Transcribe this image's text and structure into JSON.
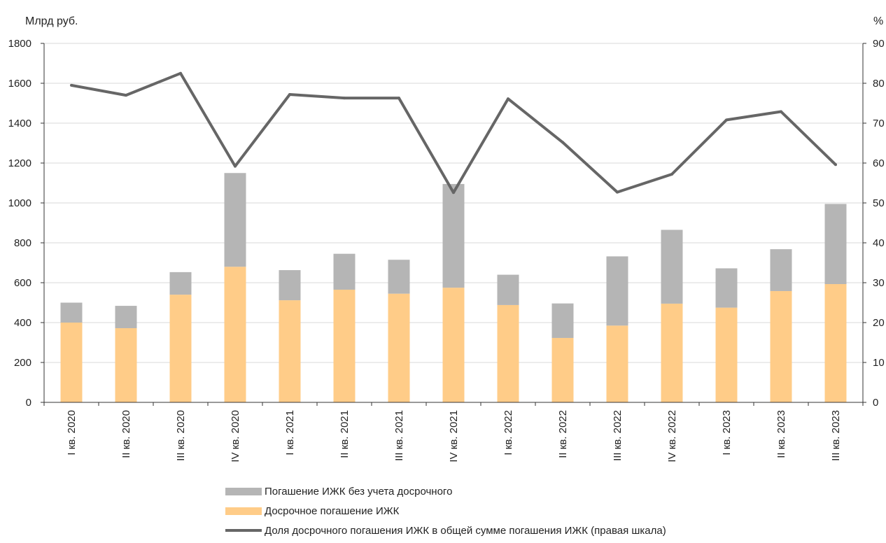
{
  "chart_data": {
    "type": "bar",
    "stacked": true,
    "left_unit": "Млрд руб.",
    "right_unit": "%",
    "categories": [
      "I кв. 2020",
      "II кв. 2020",
      "III кв. 2020",
      "IV кв. 2020",
      "I кв. 2021",
      "II кв. 2021",
      "III кв. 2021",
      "IV кв. 2021",
      "I кв. 2022",
      "II кв. 2022",
      "III кв. 2022",
      "IV кв. 2022",
      "I кв. 2023",
      "II кв. 2023",
      "III кв. 2023"
    ],
    "ylim": [
      0,
      1800
    ],
    "y_ticks": [
      "0",
      "200",
      "400",
      "600",
      "800",
      "1000",
      "1200",
      "1400",
      "1600",
      "1800"
    ],
    "y2lim": [
      0,
      90
    ],
    "y2_ticks": [
      "0",
      "10",
      "20",
      "30",
      "40",
      "50",
      "60",
      "70",
      "80",
      "90"
    ],
    "series": [
      {
        "name": "Досрочное погашение ИЖК",
        "kind": "bar",
        "color": "#FFCC88",
        "values": [
          400,
          372,
          540,
          680,
          512,
          565,
          545,
          575,
          488,
          323,
          385,
          495,
          475,
          558,
          593
        ]
      },
      {
        "name": "Погашение ИЖК без учета досрочного",
        "kind": "bar",
        "color": "#B5B5B5",
        "values": [
          100,
          112,
          113,
          470,
          151,
          180,
          170,
          520,
          152,
          173,
          347,
          370,
          197,
          210,
          402
        ]
      },
      {
        "name": "Доля досрочного погашения ИЖК в общей сумме погашения ИЖК (правая шкала)",
        "kind": "line",
        "axis": "right",
        "color": "#666666",
        "values": [
          79.5,
          77.0,
          82.5,
          59.2,
          77.2,
          76.3,
          76.3,
          52.6,
          76.1,
          65.2,
          52.7,
          57.2,
          70.8,
          72.9,
          59.6
        ]
      }
    ],
    "legend": [
      "Погашение ИЖК без учета досрочного",
      "Досрочное погашение ИЖК",
      "Доля досрочного погашения ИЖК в общей сумме погашения ИЖК (правая шкала)"
    ],
    "legend_position": "bottom",
    "grid": true
  }
}
